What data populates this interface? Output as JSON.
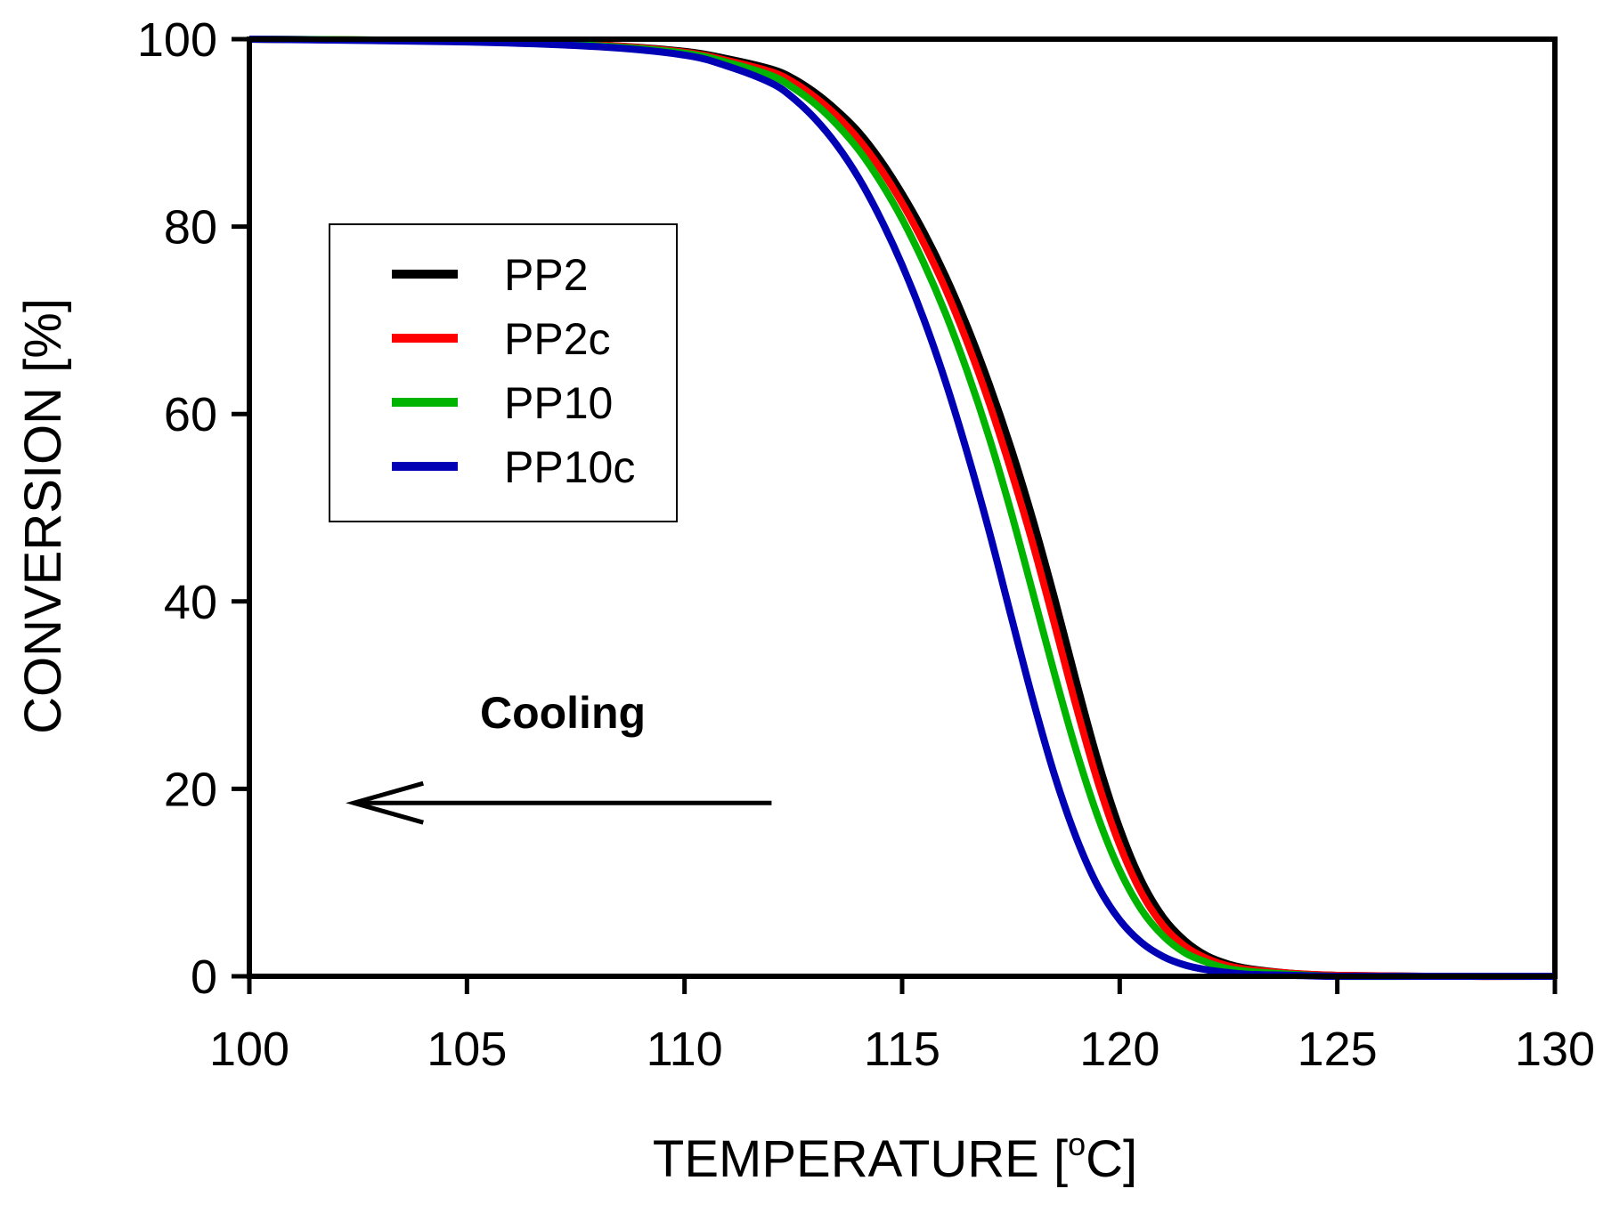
{
  "chart_data": {
    "type": "line",
    "title": "",
    "xlabel": "TEMPERATURE [",
    "xlabel_sup": "o",
    "xlabel_suffix": "C]",
    "ylabel": "CONVERSION [%]",
    "xlim": [
      100,
      130
    ],
    "ylim": [
      0,
      100
    ],
    "x_ticks": [
      100,
      105,
      110,
      115,
      120,
      125,
      130
    ],
    "y_ticks": [
      0,
      20,
      40,
      60,
      80,
      100
    ],
    "grid": false,
    "legend_position": "upper-left",
    "annotation": {
      "text": "Cooling",
      "arrow_from_x": 112,
      "arrow_to_x": 102.4,
      "arrow_y": 18.5
    },
    "series": [
      {
        "name": "PP2",
        "color": "#000000",
        "x": [
          100,
          105,
          108,
          110,
          111,
          112,
          112.5,
          113,
          113.5,
          114,
          114.5,
          115,
          115.5,
          116,
          116.5,
          117,
          117.5,
          118,
          118.5,
          119,
          119.5,
          120,
          120.5,
          121,
          121.5,
          122,
          122.5,
          123,
          124,
          125,
          127,
          130
        ],
        "values": [
          100,
          99.8,
          99.4,
          98.7,
          97.9,
          96.8,
          95.8,
          94.3,
          92.4,
          90.1,
          87.1,
          83.5,
          79.4,
          74.7,
          69.3,
          63.2,
          56.4,
          48.8,
          40.4,
          31.5,
          23.0,
          15.8,
          10.2,
          6.3,
          3.8,
          2.2,
          1.3,
          0.8,
          0.3,
          0.1,
          0.0,
          0.0
        ]
      },
      {
        "name": "PP2c",
        "color": "#ff0000",
        "x": [
          100,
          105,
          108,
          110,
          111,
          112,
          112.5,
          113,
          113.5,
          114,
          114.5,
          115,
          115.5,
          116,
          116.5,
          117,
          117.5,
          118,
          118.5,
          119,
          119.5,
          120,
          120.5,
          121,
          121.5,
          122,
          122.5,
          123,
          124,
          125,
          127,
          130
        ],
        "values": [
          100,
          99.8,
          99.4,
          98.6,
          97.7,
          96.5,
          95.4,
          93.8,
          91.8,
          89.3,
          86.2,
          82.5,
          78.2,
          73.3,
          67.6,
          61.2,
          54.0,
          46.2,
          37.6,
          28.8,
          20.7,
          14.0,
          8.9,
          5.4,
          3.2,
          1.9,
          1.1,
          0.7,
          0.3,
          0.1,
          0.0,
          0.0
        ]
      },
      {
        "name": "PP10",
        "color": "#00b400",
        "x": [
          100,
          105,
          108,
          110,
          111,
          112,
          112.5,
          113,
          113.5,
          114,
          114.5,
          115,
          115.5,
          116,
          116.5,
          117,
          117.5,
          118,
          118.5,
          119,
          119.5,
          120,
          120.5,
          121,
          121.5,
          122,
          122.5,
          123,
          124,
          125,
          127,
          130
        ],
        "values": [
          100,
          99.8,
          99.3,
          98.5,
          97.5,
          96.1,
          94.8,
          93.1,
          90.9,
          88.2,
          84.8,
          80.8,
          76.1,
          70.7,
          64.5,
          57.5,
          49.6,
          41.0,
          32.3,
          24.1,
          17.0,
          11.3,
          7.1,
          4.3,
          2.5,
          1.5,
          0.8,
          0.5,
          0.2,
          0.0,
          0.0,
          0.0
        ]
      },
      {
        "name": "PP10c",
        "color": "#0000b4",
        "x": [
          100,
          105,
          108,
          110,
          111,
          112,
          112.5,
          113,
          113.5,
          114,
          114.5,
          115,
          115.5,
          116,
          116.5,
          117,
          117.5,
          118,
          118.5,
          119,
          119.5,
          120,
          120.5,
          121,
          121.5,
          122,
          122.5,
          123,
          124,
          125,
          127,
          130
        ],
        "values": [
          100,
          99.7,
          99.2,
          98.3,
          97.1,
          95.3,
          93.7,
          91.5,
          88.7,
          85.2,
          80.9,
          75.9,
          70.1,
          63.4,
          55.8,
          47.5,
          38.5,
          29.6,
          21.5,
          14.8,
          9.6,
          6.0,
          3.6,
          2.1,
          1.2,
          0.7,
          0.4,
          0.2,
          0.1,
          0.0,
          0.0,
          0.0
        ]
      }
    ]
  }
}
